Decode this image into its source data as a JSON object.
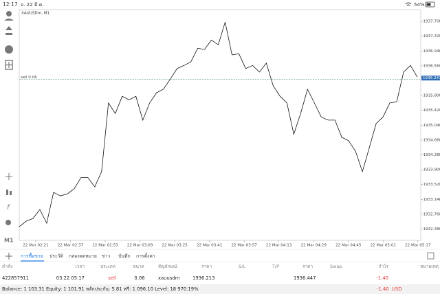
{
  "status_bar": {
    "time": "12:17",
    "date": "อ. 22 มี.ค.",
    "battery": "54%"
  },
  "chart_data": {
    "type": "line",
    "title": "XAUUSDm, M1",
    "order_label": "sell 0.06",
    "current_price": 1936.247,
    "color": "#111111",
    "values": [
      1932.44,
      1932.58,
      1932.65,
      1932.88,
      1932.53,
      1933.32,
      1933.23,
      1933.28,
      1933.41,
      1933.7,
      1933.7,
      1933.46,
      1933.85,
      1935.61,
      1935.34,
      1935.78,
      1935.69,
      1935.78,
      1935.17,
      1935.61,
      1935.87,
      1935.96,
      1936.22,
      1936.49,
      1936.57,
      1936.66,
      1937.01,
      1936.98,
      1937.22,
      1937.1,
      1937.68,
      1936.84,
      1936.87,
      1936.49,
      1936.57,
      1936.4,
      1936.63,
      1936.05,
      1935.78,
      1935.61,
      1934.81,
      1935.34,
      1935.96,
      1935.61,
      1935.25,
      1935.17,
      1935.17,
      1934.73,
      1934.64,
      1934.37,
      1933.85,
      1934.46,
      1935.08,
      1935.25,
      1935.61,
      1935.64,
      1936.4,
      1936.57,
      1936.27
    ],
    "xticks": [
      "22 Mar 02:21",
      "22 Mar 02:37",
      "22 Mar 02:53",
      "22 Mar 03:09",
      "22 Mar 03:25",
      "22 Mar 03:41",
      "22 Mar 03:57",
      "22 Mar 04:13",
      "22 Mar 04:29",
      "22 Mar 04:45",
      "22 Mar 05:01",
      "22 Mar 05:17"
    ],
    "ylim": [
      1932.09,
      1938.0
    ],
    "yticks": [
      {
        "value": 1937.7,
        "label": "1937.700"
      },
      {
        "value": 1937.32,
        "label": "1937.320"
      },
      {
        "value": 1936.94,
        "label": "1936.940"
      },
      {
        "value": 1936.56,
        "label": "1936.560"
      },
      {
        "value": 1935.8,
        "label": "1935.800"
      },
      {
        "value": 1935.42,
        "label": "1935.420"
      },
      {
        "value": 1935.04,
        "label": "1935.040"
      },
      {
        "value": 1934.66,
        "label": "1934.660"
      },
      {
        "value": 1934.28,
        "label": "1934.280"
      },
      {
        "value": 1933.9,
        "label": "1933.900"
      },
      {
        "value": 1933.52,
        "label": "1933.520"
      },
      {
        "value": 1933.14,
        "label": "1933.140"
      },
      {
        "value": 1932.76,
        "label": "1932.760"
      },
      {
        "value": 1932.38,
        "label": "1932.380"
      }
    ]
  },
  "tabs": [
    "การซื้อขาย",
    "ประวัติ",
    "กล่องจดหมาย",
    "ข่าว",
    "บันทึก",
    "การตั้งค่า"
  ],
  "active_tab": 0,
  "table": {
    "headers": [
      "คำสั่ง",
      "เวลา",
      "ประเภท",
      "ขนาด",
      "สัญลักษณ์",
      "ราคา",
      "S/L",
      "T/P",
      "ราคา",
      "Swap",
      "กำไร",
      "หมายเหตุ"
    ],
    "rows": [
      [
        "422857911",
        "03.22 05:17",
        "sell",
        "0.06",
        "xauusdm",
        "1936.213",
        null,
        null,
        "1936.447",
        null,
        "-1.40",
        null
      ]
    ]
  },
  "footer": {
    "summary": "Balance: 1 103.31 Equity: 1 101.91 หลักประกัน: 5.81 ฟรี: 1 096.10 Level: 18 970.19%",
    "profit": "-1.40",
    "currency": "USD"
  }
}
